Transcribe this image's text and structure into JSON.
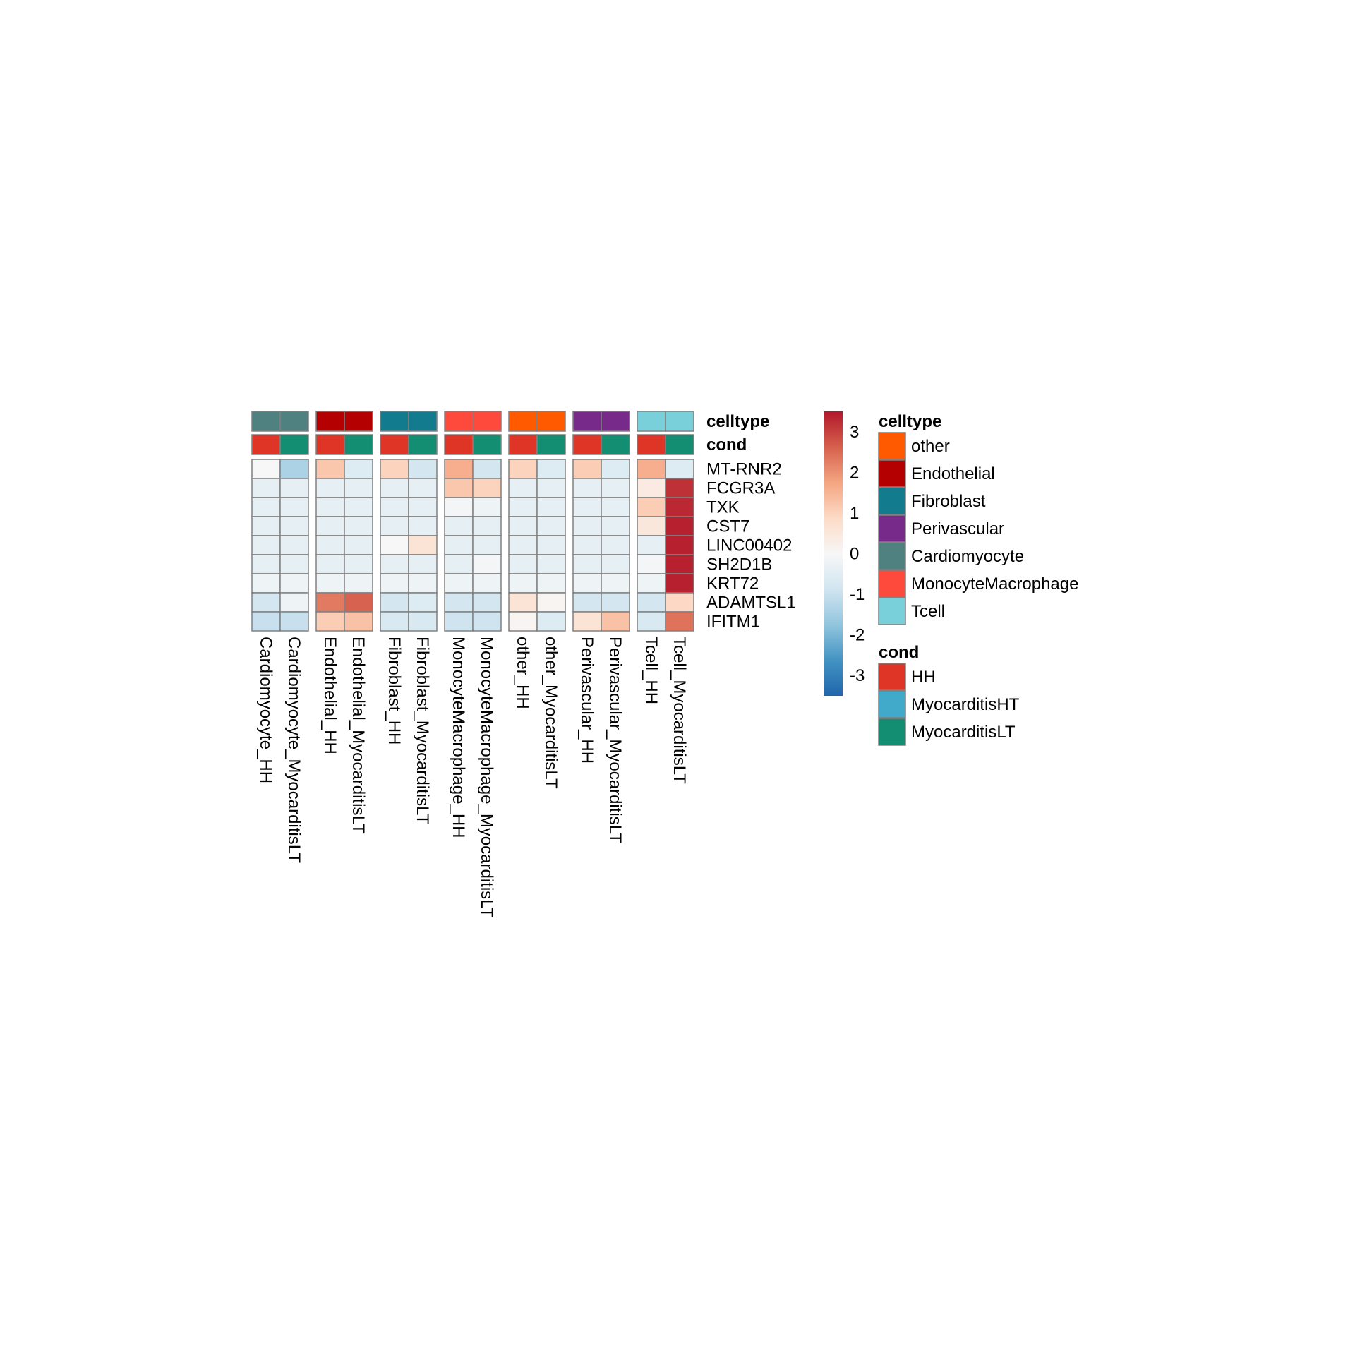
{
  "chart_data": {
    "type": "heatmap",
    "title": "",
    "xlabel": "",
    "ylabel": "",
    "columns": [
      "Cardiomyocyte_HH",
      "Cardiomyocyte_MyocarditisLT",
      "Endothelial_HH",
      "Endothelial_MyocarditisLT",
      "Fibroblast_HH",
      "Fibroblast_MyocarditisLT",
      "MonocyteMacrophage_HH",
      "MonocyteMacrophage_MyocarditisLT",
      "other_HH",
      "other_MyocarditisLT",
      "Perivascular_HH",
      "Perivascular_MyocarditisLT",
      "Tcell_HH",
      "Tcell_MyocarditisLT"
    ],
    "column_groups": [
      2,
      2,
      2,
      2,
      2,
      2,
      2
    ],
    "rows": [
      "MT-RNR2",
      "FCGR3A",
      "TXK",
      "CST7",
      "LINC00402",
      "SH2D1B",
      "KRT72",
      "ADAMTSL1",
      "IFITM1"
    ],
    "values": [
      [
        0.0,
        -1.4,
        1.2,
        -0.6,
        1.0,
        -0.8,
        1.6,
        -0.8,
        1.0,
        -0.6,
        1.1,
        -0.6,
        1.6,
        -0.6
      ],
      [
        -0.4,
        -0.4,
        -0.4,
        -0.4,
        -0.4,
        -0.4,
        1.2,
        1.0,
        -0.4,
        -0.4,
        -0.4,
        -0.4,
        0.4,
        3.2
      ],
      [
        -0.4,
        -0.4,
        -0.4,
        -0.4,
        -0.4,
        -0.4,
        -0.1,
        -0.2,
        -0.4,
        -0.4,
        -0.4,
        -0.4,
        1.1,
        3.3
      ],
      [
        -0.4,
        -0.4,
        -0.4,
        -0.4,
        -0.4,
        -0.4,
        -0.4,
        -0.4,
        -0.4,
        -0.4,
        -0.4,
        -0.4,
        0.5,
        3.4
      ],
      [
        -0.4,
        -0.4,
        -0.4,
        -0.4,
        0.0,
        0.6,
        -0.4,
        -0.4,
        -0.4,
        -0.4,
        -0.4,
        -0.4,
        -0.4,
        3.4
      ],
      [
        -0.4,
        -0.4,
        -0.4,
        -0.4,
        -0.4,
        -0.4,
        -0.4,
        -0.1,
        -0.4,
        -0.4,
        -0.4,
        -0.4,
        -0.1,
        3.4
      ],
      [
        -0.2,
        -0.2,
        -0.2,
        -0.2,
        -0.2,
        -0.2,
        -0.2,
        -0.2,
        -0.2,
        -0.2,
        -0.2,
        -0.2,
        -0.2,
        3.4
      ],
      [
        -0.8,
        -0.2,
        2.3,
        2.6,
        -0.8,
        -0.6,
        -0.8,
        -0.8,
        0.6,
        0.1,
        -0.8,
        -0.8,
        -0.8,
        0.9
      ],
      [
        -1.0,
        -1.0,
        1.1,
        1.3,
        -0.7,
        -0.7,
        -0.9,
        -0.9,
        0.1,
        -0.6,
        0.6,
        1.3,
        -0.7,
        2.4
      ]
    ],
    "annotations": {
      "celltype": [
        "Cardiomyocyte",
        "Cardiomyocyte",
        "Endothelial",
        "Endothelial",
        "Fibroblast",
        "Fibroblast",
        "MonocyteMacrophage",
        "MonocyteMacrophage",
        "other",
        "other",
        "Perivascular",
        "Perivascular",
        "Tcell",
        "Tcell"
      ],
      "cond": [
        "HH",
        "MyocarditisLT",
        "HH",
        "MyocarditisLT",
        "HH",
        "MyocarditisLT",
        "HH",
        "MyocarditisLT",
        "HH",
        "MyocarditisLT",
        "HH",
        "MyocarditisLT",
        "HH",
        "MyocarditisLT"
      ]
    },
    "annotation_labels": [
      "celltype",
      "cond"
    ],
    "colorbar": {
      "range": [
        -3.5,
        3.5
      ],
      "ticks": [
        3,
        2,
        1,
        0,
        -1,
        -2,
        -3
      ],
      "colors": [
        "#2166ac",
        "#4393c3",
        "#92c5de",
        "#d1e5f0",
        "#f7f7f7",
        "#fddbc7",
        "#f4a582",
        "#d6604d",
        "#b2182b"
      ]
    },
    "legends": [
      {
        "title": "celltype",
        "items": [
          {
            "label": "other",
            "color": "#ff5a00"
          },
          {
            "label": "Endothelial",
            "color": "#b40000"
          },
          {
            "label": "Fibroblast",
            "color": "#137b8e"
          },
          {
            "label": "Perivascular",
            "color": "#782a8a"
          },
          {
            "label": "Cardiomyocyte",
            "color": "#4e8180"
          },
          {
            "label": "MonocyteMacrophage",
            "color": "#fe4a3c"
          },
          {
            "label": "Tcell",
            "color": "#79d0da"
          }
        ]
      },
      {
        "title": "cond",
        "items": [
          {
            "label": "HH",
            "color": "#df3527"
          },
          {
            "label": "MyocarditisHT",
            "color": "#41a9c9"
          },
          {
            "label": "MyocarditisLT",
            "color": "#138e72"
          }
        ]
      }
    ],
    "legend_placement": "right",
    "grid": false
  }
}
